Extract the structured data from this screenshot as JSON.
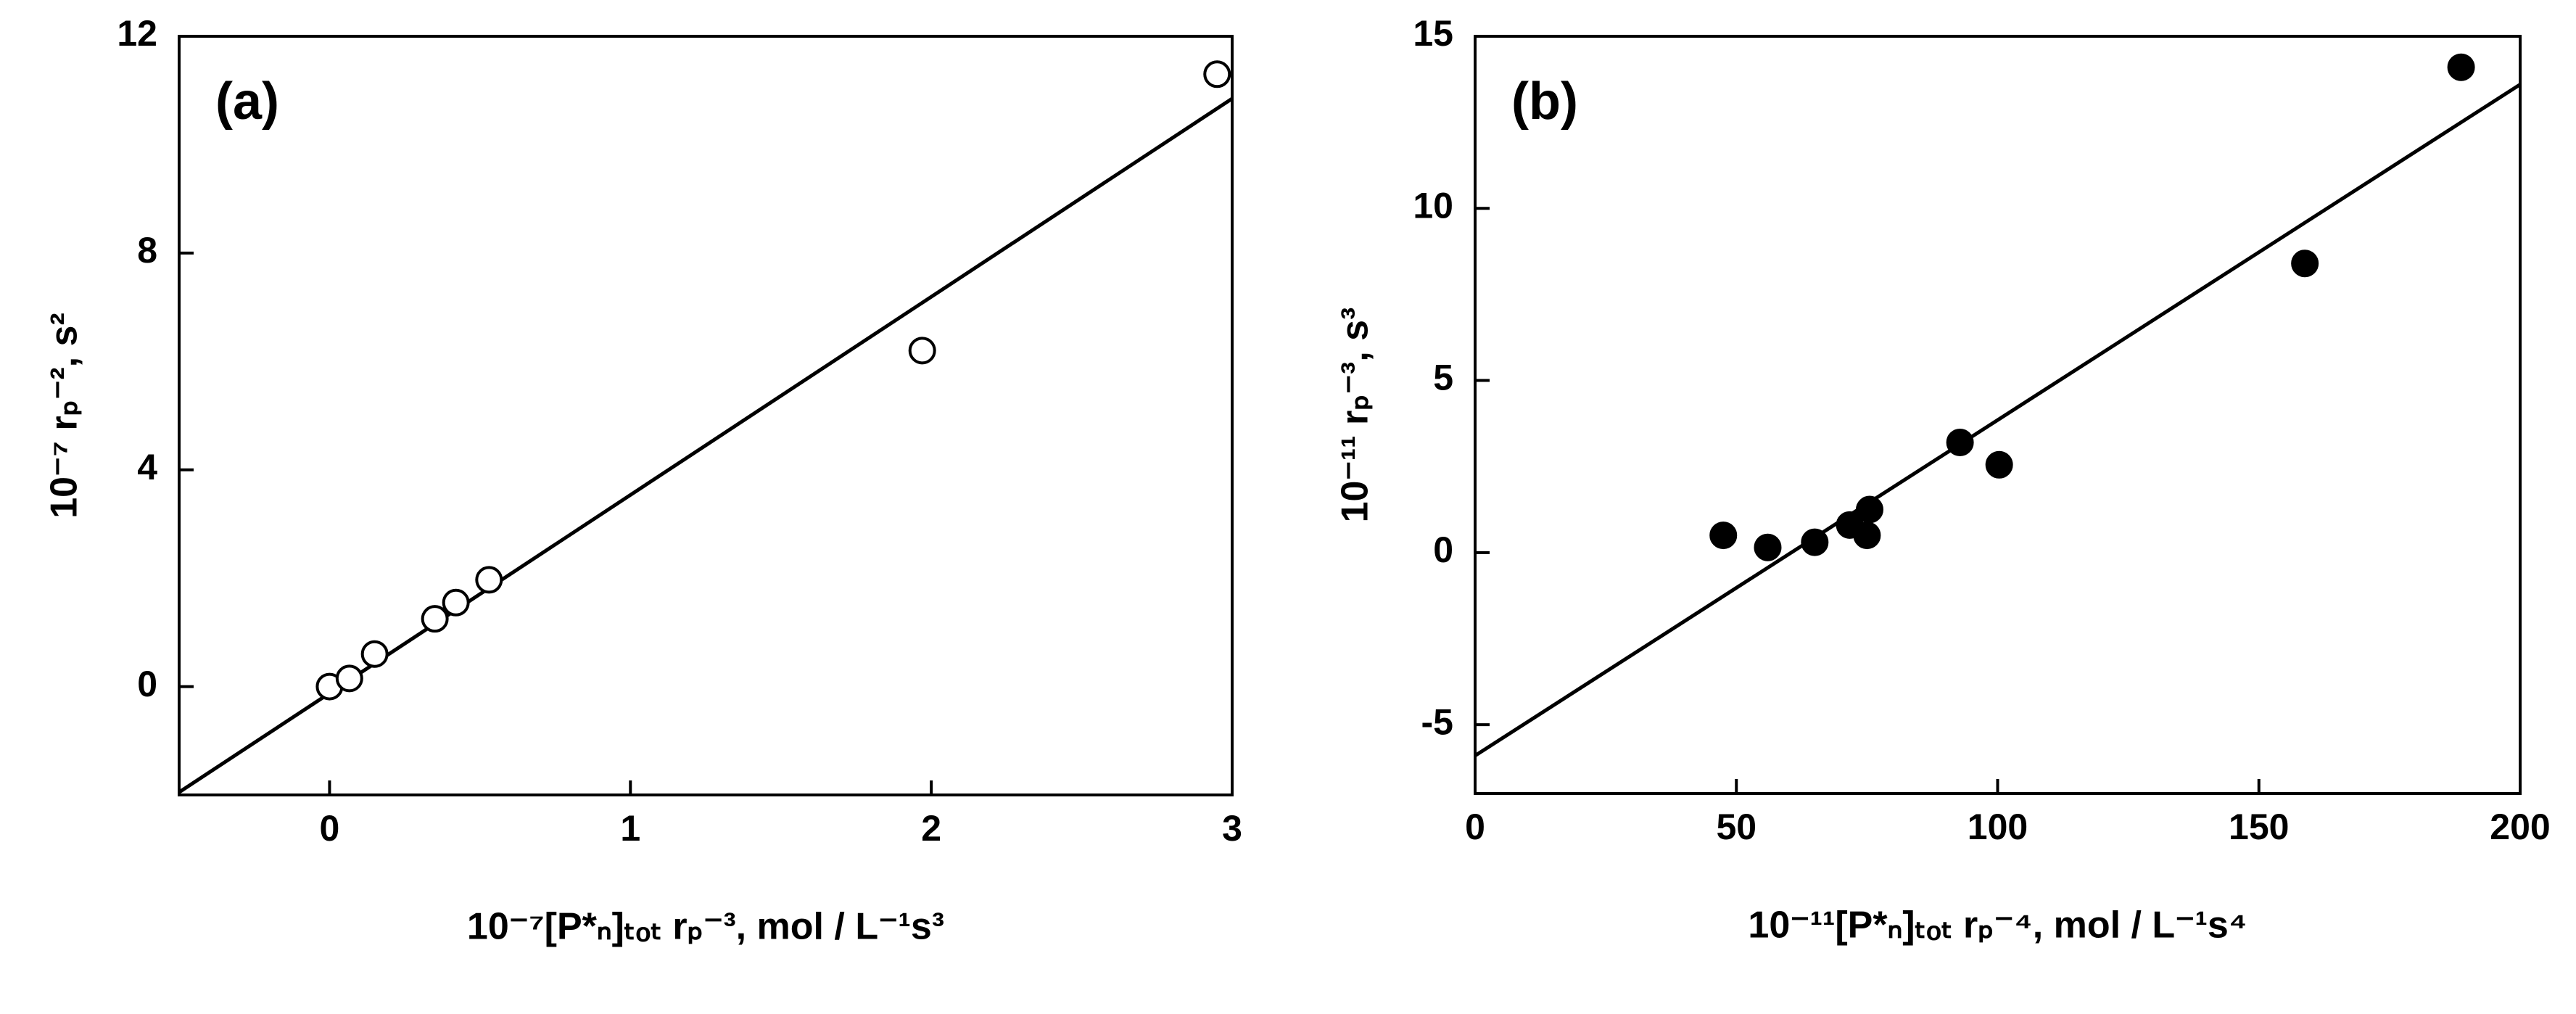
{
  "chart_data": [
    {
      "type": "scatter",
      "panel_label": "(a)",
      "x_label": "10⁻⁷[P*ₙ]ₜₒₜ rₚ⁻³, mol / L⁻¹s³",
      "y_label": "10⁻⁷ rₚ⁻², s²",
      "xlim": [
        -0.5,
        3
      ],
      "ylim": [
        -2,
        12
      ],
      "xticks": [
        0,
        1,
        2,
        3
      ],
      "yticks": [
        0,
        4,
        8,
        12
      ],
      "series": [
        {
          "marker": "open",
          "color": "#000000",
          "x": [
            0,
            0.066,
            0.15,
            0.35,
            0.42,
            0.53,
            1.97,
            2.95
          ],
          "values": [
            0,
            0.15,
            0.6,
            1.25,
            1.55,
            1.97,
            6.2,
            11.3
          ]
        }
      ],
      "fit": {
        "x": [
          -0.5,
          3
        ],
        "y": [
          -1.95,
          10.85
        ]
      }
    },
    {
      "type": "scatter",
      "panel_label": "(b)",
      "x_label": "10⁻¹¹[P*ₙ]ₜₒₜ rₚ⁻⁴, mol / L⁻¹s⁴",
      "y_label": "10⁻¹¹ rₚ⁻³, s³",
      "xlim": [
        0,
        200
      ],
      "ylim": [
        -7,
        15
      ],
      "xticks": [
        0,
        50,
        100,
        150,
        200
      ],
      "yticks": [
        -5,
        0,
        5,
        10,
        15
      ],
      "series": [
        {
          "marker": "filled",
          "color": "#000000",
          "x": [
            47.5,
            56,
            65,
            71.7,
            75,
            75.5,
            92.8,
            100.3,
            158.8,
            188.7
          ],
          "values": [
            0.5,
            0.15,
            0.3,
            0.8,
            0.5,
            1.25,
            3.2,
            2.55,
            8.4,
            14.1
          ]
        }
      ],
      "fit": {
        "x": [
          0,
          200
        ],
        "y": [
          -5.9,
          13.6
        ]
      }
    }
  ]
}
